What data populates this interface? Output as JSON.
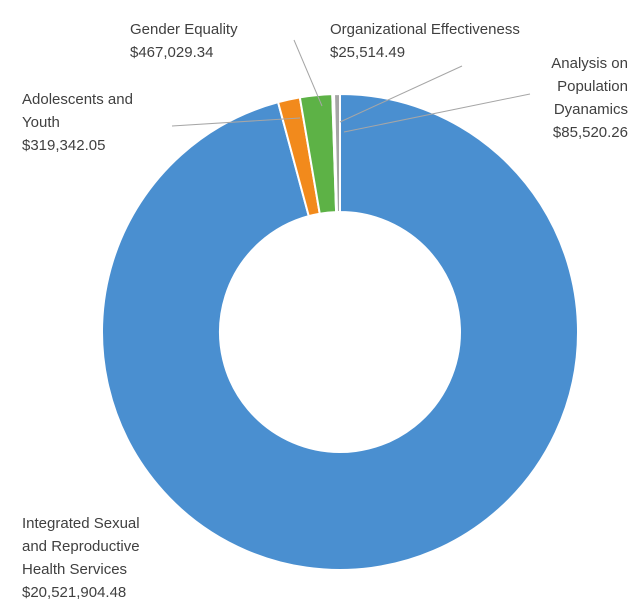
{
  "chart_data": {
    "type": "pie",
    "variant": "donut",
    "legend": "none",
    "slices": [
      {
        "label_lines": [
          "Integrated Sexual",
          "and Reproductive",
          "Health Services"
        ],
        "value_text": "$20,521,904.48",
        "value": 20521904.48,
        "color": "#4a8fd0"
      },
      {
        "label_lines": [
          "Adolescents and",
          "Youth"
        ],
        "value_text": "$319,342.05",
        "value": 319342.05,
        "color": "#f28a1c"
      },
      {
        "label_lines": [
          "Gender Equality"
        ],
        "value_text": "$467,029.34",
        "value": 467029.34,
        "color": "#5db246"
      },
      {
        "label_lines": [
          "Organizational Effectiveness"
        ],
        "value_text": "$25,514.49",
        "value": 25514.49,
        "color": "#9b6fc0"
      },
      {
        "label_lines": [
          "Analysis on",
          "Population",
          "Dyanamics"
        ],
        "value_text": "$85,520.26",
        "value": 85520.26,
        "color": "#a5a5a5"
      }
    ]
  }
}
